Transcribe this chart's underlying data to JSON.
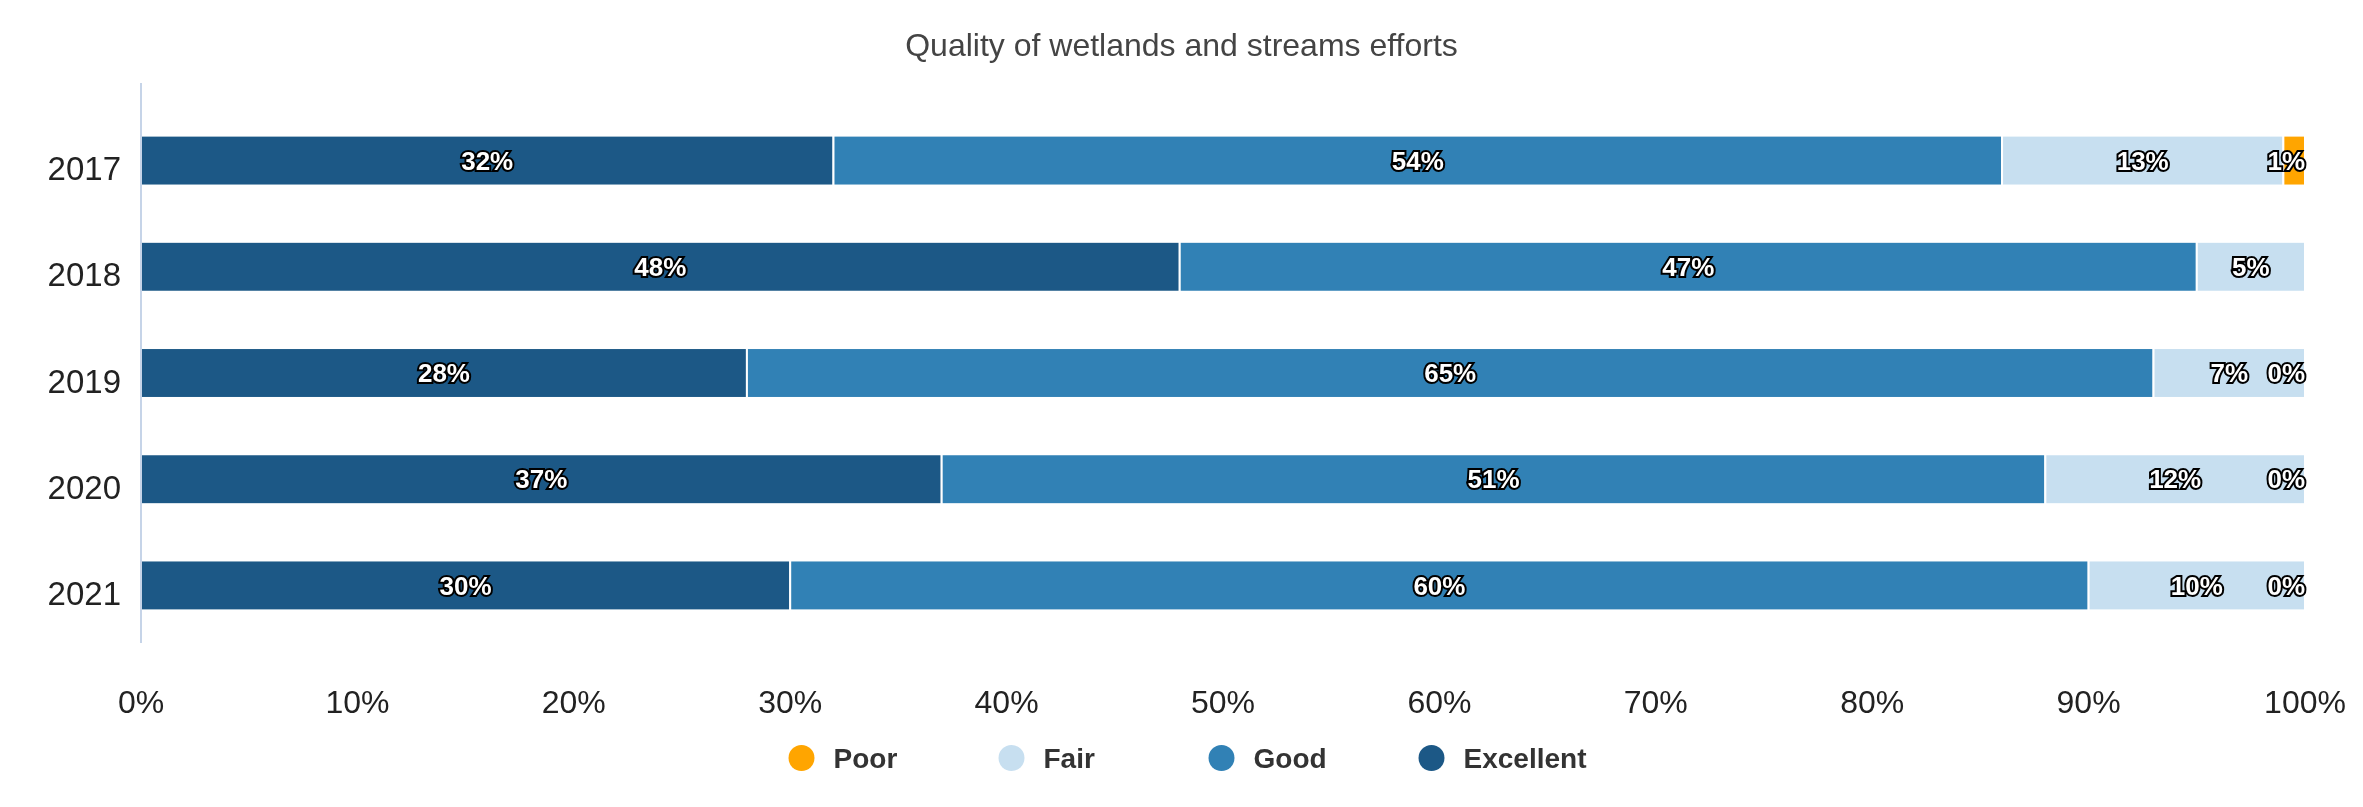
{
  "chart_data": {
    "type": "bar",
    "title": "Quality of wetlands and streams efforts",
    "orientation": "horizontal",
    "stacked": true,
    "categories": [
      "2017",
      "2018",
      "2019",
      "2020",
      "2021"
    ],
    "series": [
      {
        "name": "Excellent",
        "color": "#1c5886",
        "values": [
          32,
          48,
          28,
          37,
          30
        ],
        "value_labels": [
          "32%",
          "48%",
          "28%",
          "37%",
          "30%"
        ]
      },
      {
        "name": "Good",
        "color": "#3181b5",
        "values": [
          54,
          47,
          65,
          51,
          60
        ],
        "value_labels": [
          "54%",
          "47%",
          "65%",
          "51%",
          "60%"
        ]
      },
      {
        "name": "Fair",
        "color": "#c7dff0",
        "values": [
          13,
          5,
          7,
          12,
          10
        ],
        "value_labels": [
          "13%",
          "5%",
          "7%",
          "12%",
          "10%"
        ]
      },
      {
        "name": "Poor",
        "color": "#ffa500",
        "values": [
          1,
          0,
          0,
          0,
          0
        ],
        "value_labels": [
          "1%",
          null,
          "0%",
          "0%",
          "0%"
        ]
      }
    ],
    "xlim": [
      0,
      100
    ],
    "xticks": [
      {
        "value": 0,
        "label": "0%"
      },
      {
        "value": 10,
        "label": "10%"
      },
      {
        "value": 20,
        "label": "20%"
      },
      {
        "value": 30,
        "label": "30%"
      },
      {
        "value": 40,
        "label": "40%"
      },
      {
        "value": 50,
        "label": "50%"
      },
      {
        "value": 60,
        "label": "60%"
      },
      {
        "value": 70,
        "label": "70%"
      },
      {
        "value": 80,
        "label": "80%"
      },
      {
        "value": 90,
        "label": "90%"
      },
      {
        "value": 100,
        "label": "100%"
      }
    ],
    "grid": false,
    "legend": "bottom",
    "marker": "circle"
  }
}
